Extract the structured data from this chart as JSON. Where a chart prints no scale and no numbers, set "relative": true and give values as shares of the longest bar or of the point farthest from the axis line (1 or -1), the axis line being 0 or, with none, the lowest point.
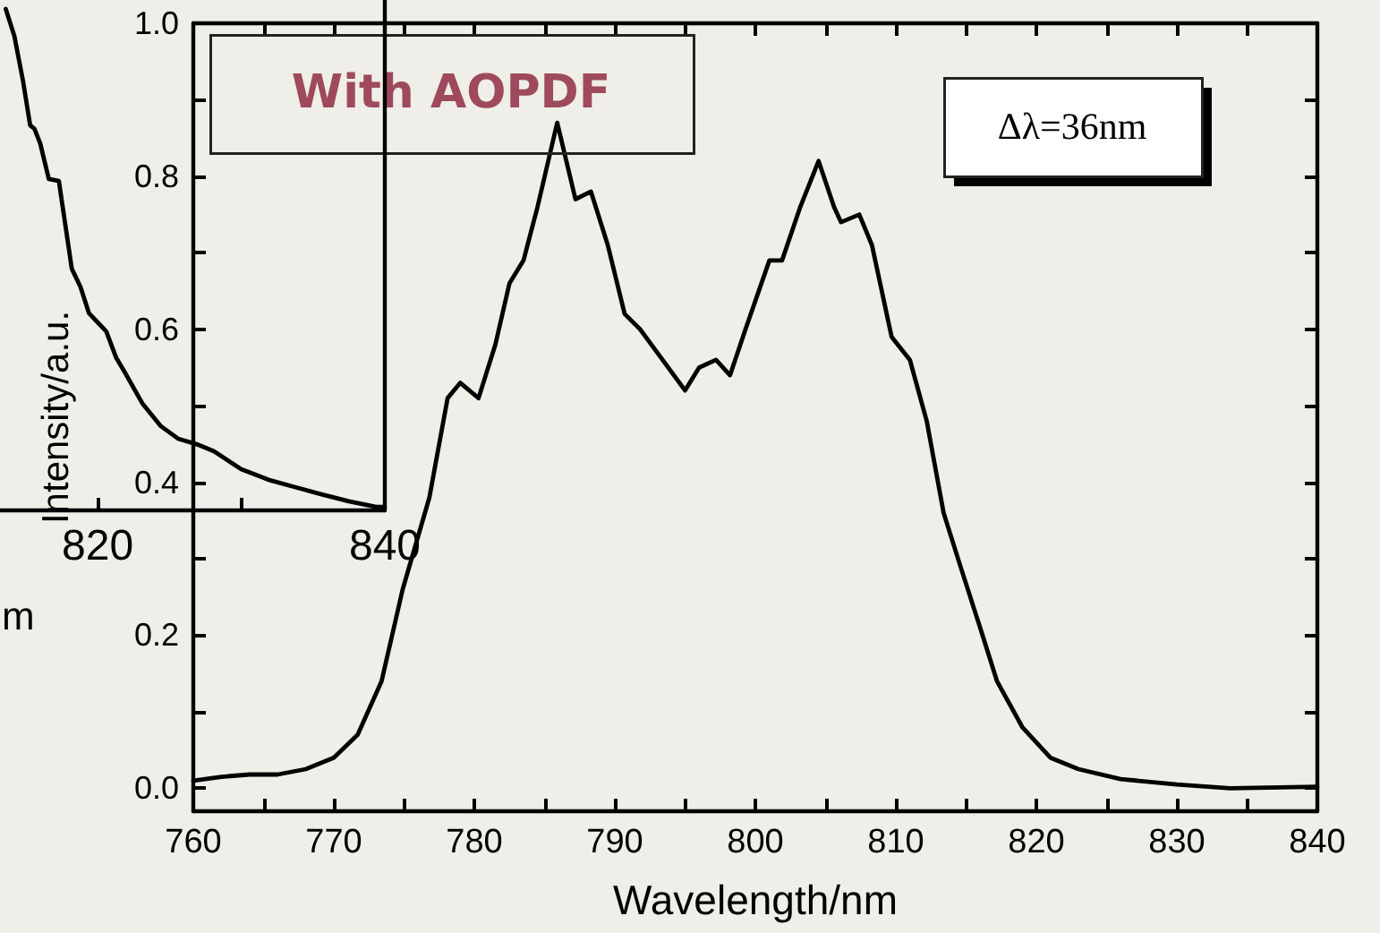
{
  "chart_data": [
    {
      "type": "line",
      "xlabel": "Wavelength/nm",
      "ylabel": "Intensity/a.u.",
      "annotations": [
        "With AOPDF",
        "Δλ=36nm"
      ],
      "x": [
        760,
        762,
        764,
        766,
        768,
        770,
        771.7,
        773.4,
        774.9,
        776.8,
        778.1,
        779,
        780.3,
        781.5,
        782.5,
        783.5,
        784.5,
        785.9,
        787.2,
        788.3,
        789.5,
        790.7,
        791.8,
        793,
        795,
        796,
        797.2,
        798.2,
        799.3,
        801,
        801.9,
        803.2,
        804.5,
        805.6,
        806.1,
        807.4,
        808.3,
        809.7,
        811,
        812.2,
        813.4,
        814.6,
        816,
        817.2,
        819,
        821,
        823,
        826,
        830,
        833.8,
        840
      ],
      "series": [
        {
          "color": "#000000",
          "values": [
            0.01,
            0.015,
            0.018,
            0.018,
            0.025,
            0.04,
            0.07,
            0.14,
            0.26,
            0.38,
            0.51,
            0.53,
            0.51,
            0.58,
            0.66,
            0.69,
            0.76,
            0.87,
            0.77,
            0.78,
            0.71,
            0.62,
            0.6,
            0.57,
            0.52,
            0.55,
            0.56,
            0.54,
            0.6,
            0.69,
            0.69,
            0.76,
            0.82,
            0.76,
            0.74,
            0.75,
            0.71,
            0.59,
            0.56,
            0.48,
            0.36,
            0.29,
            0.21,
            0.14,
            0.08,
            0.04,
            0.025,
            0.012,
            0.005,
            0,
            0.002
          ]
        }
      ],
      "xlim": [
        760,
        840
      ],
      "ylim": [
        -0.03,
        1.0
      ],
      "xticks": [
        760,
        {
          "value": 765,
          "label": null
        },
        770,
        {
          "value": 775,
          "label": null
        },
        780,
        {
          "value": 785,
          "label": null
        },
        790,
        {
          "value": 795,
          "label": null
        },
        800,
        {
          "value": 805,
          "label": null
        },
        810,
        {
          "value": 815,
          "label": null
        },
        820,
        {
          "value": 825,
          "label": null
        },
        830,
        {
          "value": 835,
          "label": null
        },
        840
      ],
      "yticks": [
        {
          "value": 0,
          "label": "0.0"
        },
        {
          "value": 0.1,
          "label": null
        },
        0.2,
        {
          "value": 0.3,
          "label": null
        },
        0.4,
        {
          "value": 0.5,
          "label": null
        },
        0.6,
        {
          "value": 0.7,
          "label": null
        },
        0.8,
        {
          "value": 0.9,
          "label": null
        },
        {
          "value": 1,
          "label": "1.0"
        }
      ],
      "grid": false,
      "marker": "none",
      "line_style": "solid"
    },
    {
      "type": "line",
      "xlabel": "m",
      "relative": true,
      "tick_labels": "x",
      "x": [
        813.6,
        814.2,
        814.8,
        815.3,
        815.6,
        816,
        816.6,
        817.3,
        818.2,
        818.8,
        819.4,
        820,
        820.6,
        821.3,
        821.9,
        823.1,
        824.4,
        825.6,
        826.9,
        828.1,
        830,
        831.9,
        833.8,
        835.6,
        837.5,
        839.4,
        840
      ],
      "series": [
        {
          "color": "#000000",
          "values": [
            1,
            0.946,
            0.857,
            0.768,
            0.761,
            0.732,
            0.661,
            0.657,
            0.482,
            0.446,
            0.393,
            0.375,
            0.357,
            0.304,
            0.275,
            0.214,
            0.168,
            0.143,
            0.132,
            0.118,
            0.082,
            0.061,
            0.046,
            0.032,
            0.018,
            0.007,
            0.007
          ]
        }
      ],
      "xlim": [
        813.2,
        840
      ],
      "xticks": [
        820,
        {
          "value": 830,
          "label": null
        },
        840
      ],
      "grid": false,
      "marker": "none",
      "line_style": "solid"
    }
  ]
}
